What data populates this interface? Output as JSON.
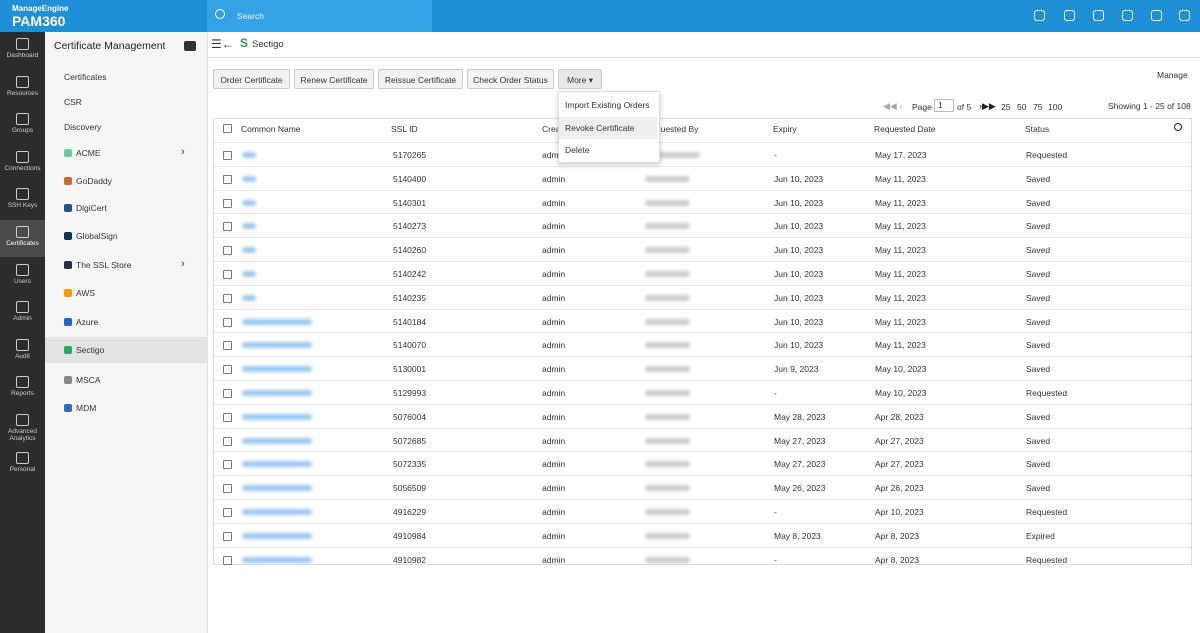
{
  "header": {
    "brand": "ManageEngine",
    "product": "PAM360",
    "search": "Search"
  },
  "nav": [
    "Dashboard",
    "Resources",
    "Groups",
    "Connections",
    "SSH Keys",
    "Certificates",
    "Users",
    "Admin",
    "Audit",
    "Reports",
    "Advanced Analytics",
    "Personal"
  ],
  "sidebar": {
    "title": "Certificate Management",
    "items": [
      "Certificates",
      "CSR",
      "Discovery",
      "ACME",
      "GoDaddy",
      "DigiCert",
      "GlobalSign",
      "The SSL Store",
      "AWS",
      "Azure",
      "Sectigo",
      "MSCA",
      "MDM"
    ]
  },
  "breadcrumb": "Sectigo",
  "toolbar": {
    "buttons": [
      "Order Certificate",
      "Renew Certificate",
      "Reissue Certificate",
      "Check Order Status"
    ],
    "more": "More",
    "manage": "Manage"
  },
  "menu": [
    "Import Existing Orders",
    "Revoke Certificate",
    "Delete"
  ],
  "pagination": {
    "page_label": "Page",
    "page": "1",
    "of": "of 5",
    "sizes": [
      "25",
      "50",
      "75",
      "100"
    ],
    "showing": "Showing 1 - 25 of 108"
  },
  "table": {
    "columns": [
      "Common Name",
      "SSL ID",
      "Created By",
      "Requested By",
      "Expiry",
      "Requested Date",
      "Status"
    ],
    "rows": [
      [
        "5170265",
        "admin",
        "-",
        "May 17, 2023",
        "Requested"
      ],
      [
        "5140400",
        "admin",
        "Jun 10, 2023",
        "May 11, 2023",
        "Saved"
      ],
      [
        "5140301",
        "admin",
        "Jun 10, 2023",
        "May 11, 2023",
        "Saved"
      ],
      [
        "5140273",
        "admin",
        "Jun 10, 2023",
        "May 11, 2023",
        "Saved"
      ],
      [
        "5140260",
        "admin",
        "Jun 10, 2023",
        "May 11, 2023",
        "Saved"
      ],
      [
        "5140242",
        "admin",
        "Jun 10, 2023",
        "May 11, 2023",
        "Saved"
      ],
      [
        "5140235",
        "admin",
        "Jun 10, 2023",
        "May 11, 2023",
        "Saved"
      ],
      [
        "5140184",
        "admin",
        "Jun 10, 2023",
        "May 11, 2023",
        "Saved"
      ],
      [
        "5140070",
        "admin",
        "Jun 10, 2023",
        "May 11, 2023",
        "Saved"
      ],
      [
        "5130001",
        "admin",
        "Jun 9, 2023",
        "May 10, 2023",
        "Saved"
      ],
      [
        "5129993",
        "admin",
        "-",
        "May 10, 2023",
        "Requested"
      ],
      [
        "5076004",
        "admin",
        "May 28, 2023",
        "Apr 28, 2023",
        "Saved"
      ],
      [
        "5072685",
        "admin",
        "May 27, 2023",
        "Apr 27, 2023",
        "Saved"
      ],
      [
        "5072335",
        "admin",
        "May 27, 2023",
        "Apr 27, 2023",
        "Saved"
      ],
      [
        "5056509",
        "admin",
        "May 26, 2023",
        "Apr 26, 2023",
        "Saved"
      ],
      [
        "4916229",
        "admin",
        "-",
        "Apr 10, 2023",
        "Requested"
      ],
      [
        "4910984",
        "admin",
        "May 8, 2023",
        "Apr 8, 2023",
        "Expired"
      ],
      [
        "4910982",
        "admin",
        "-",
        "Apr 8, 2023",
        "Requested"
      ]
    ]
  }
}
